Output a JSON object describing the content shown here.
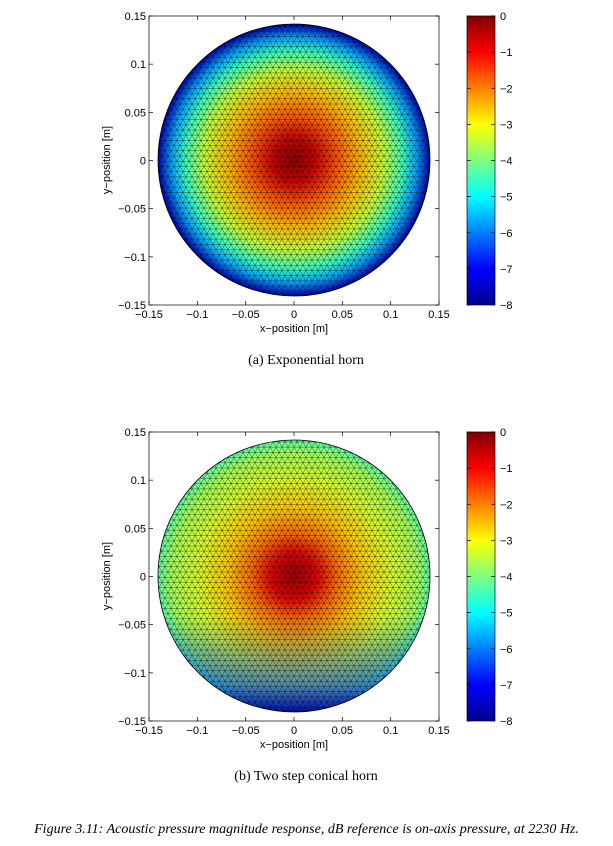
{
  "chart_data": [
    {
      "type": "heatmap",
      "caption": "(a) Exponential horn",
      "xlabel": "x−position [m]",
      "ylabel": "y−position [m]",
      "xlim": [
        -0.15,
        0.15
      ],
      "ylim": [
        -0.15,
        0.15
      ],
      "xticks": [
        "−0.15",
        "−0.1",
        "−0.05",
        "0",
        "0.05",
        "0.1",
        "0.15"
      ],
      "yticks": [
        "0.15",
        "0.1",
        "0.05",
        "0",
        "−0.05",
        "−0.1",
        "−0.15"
      ],
      "colorbar": {
        "min": -8,
        "max": 0,
        "ticks": [
          "0",
          "−1",
          "−2",
          "−3",
          "−4",
          "−5",
          "−6",
          "−7",
          "−8"
        ]
      },
      "domain": "circle",
      "radius": 0.14,
      "field": {
        "peak_db": 0,
        "edge_db": -7.8,
        "center": [
          0.0,
          0.0
        ]
      }
    },
    {
      "type": "heatmap",
      "caption": "(b) Two step conical horn",
      "xlabel": "x−position [m]",
      "ylabel": "y−position [m]",
      "xlim": [
        -0.15,
        0.15
      ],
      "ylim": [
        -0.15,
        0.15
      ],
      "xticks": [
        "−0.15",
        "−0.1",
        "−0.05",
        "0",
        "0.05",
        "0.1",
        "0.15"
      ],
      "yticks": [
        "0.15",
        "0.1",
        "0.05",
        "0",
        "−0.05",
        "−0.1",
        "−0.15"
      ],
      "colorbar": {
        "min": -8,
        "max": 0,
        "ticks": [
          "0",
          "−1",
          "−2",
          "−3",
          "−4",
          "−5",
          "−6",
          "−7",
          "−8"
        ]
      },
      "domain": "circle",
      "radius": 0.14,
      "field": {
        "peak_db": 0,
        "edge_db": -4.5,
        "bottom_edge_db": -7.5,
        "center": [
          0.0,
          0.0
        ]
      }
    }
  ],
  "figure_caption": "Figure 3.11: Acoustic pressure magnitude response, dB reference is on-axis pressure, at 2230 Hz."
}
